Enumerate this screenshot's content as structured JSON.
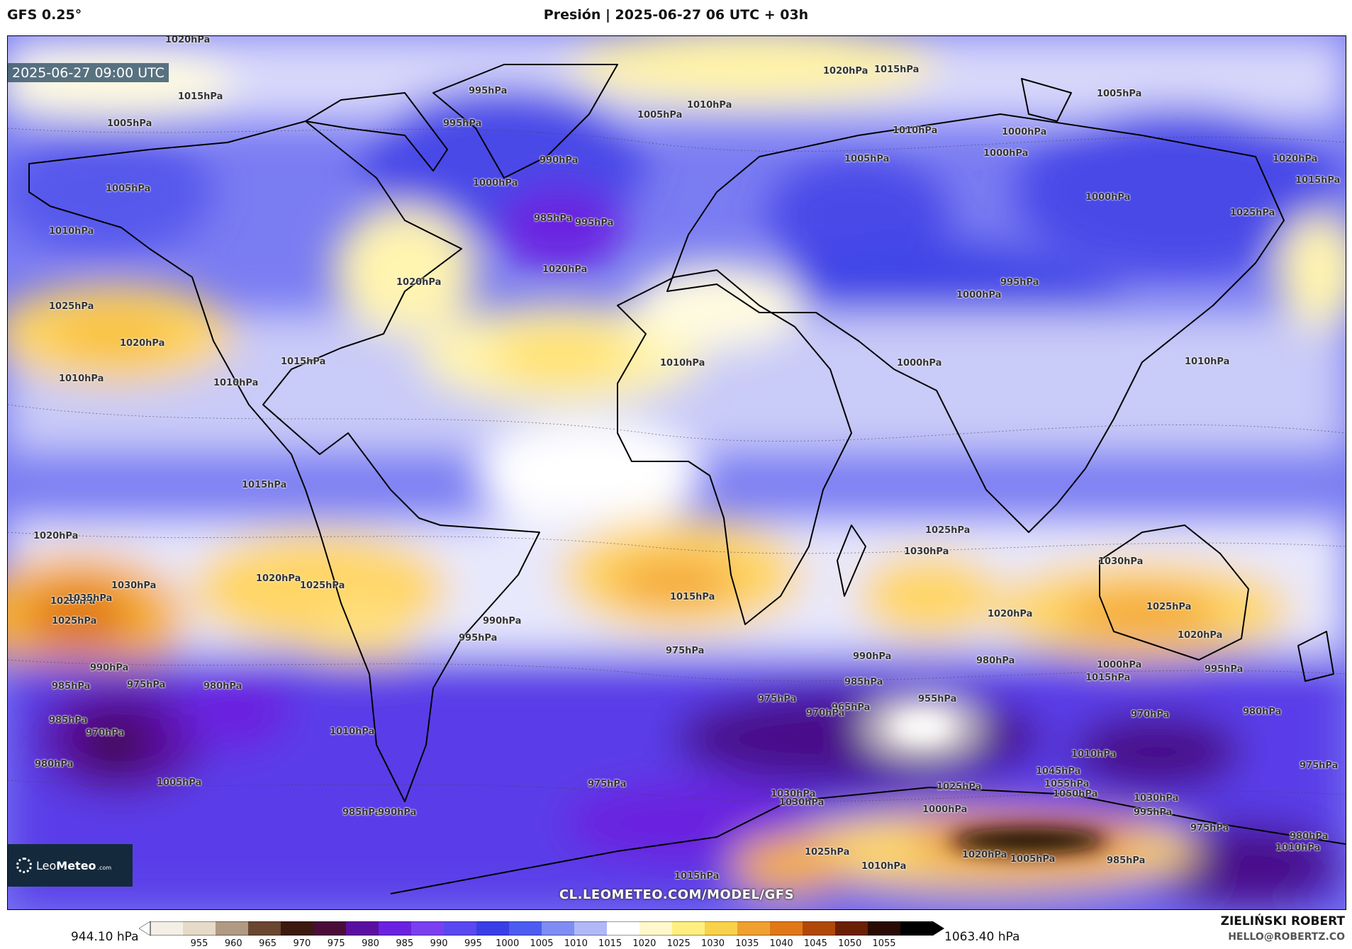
{
  "header": {
    "model": "GFS 0.25°",
    "title": "Presión | 2025-06-27 06 UTC + 03h"
  },
  "map": {
    "valid_time": "2025-06-27 09:00 UTC",
    "watermark": "CL.LEOMETEO.COM/MODEL/GFS",
    "logo": {
      "brand_light": "Leo",
      "brand_bold": "Meteo",
      "suffix": ".com"
    },
    "isobar_labels": [
      "1020hPa",
      "1015hPa",
      "1005hPa",
      "1005hPa",
      "1010hPa",
      "1025hPa",
      "1020hPa",
      "1015hPa",
      "1010hPa",
      "1010hPa",
      "1015hPa",
      "1020hPa",
      "1020hPa",
      "1035hPa",
      "1030hPa",
      "1025hPa",
      "1020hPa",
      "1025hPa",
      "990hPa",
      "985hPa",
      "975hPa",
      "980hPa",
      "985hPa",
      "970hPa",
      "980hPa",
      "1005hPa",
      "1010hPa",
      "985hPa",
      "990hPa",
      "995hPa",
      "995hPa",
      "1000hPa",
      "990hPa",
      "985hPa",
      "995hPa",
      "1005hPa",
      "1010hPa",
      "1020hPa",
      "1015hPa",
      "1005hPa",
      "1010hPa",
      "1000hPa",
      "1005hPa",
      "1000hPa",
      "1015hPa",
      "1020hPa",
      "1025hPa",
      "1020hPa",
      "1020hPa",
      "1010hPa",
      "1000hPa",
      "1000hPa",
      "995hPa",
      "1000hPa",
      "1010hPa",
      "1030hPa",
      "1025hPa",
      "1015hPa",
      "990hPa",
      "995hPa",
      "975hPa",
      "985hPa",
      "990hPa",
      "980hPa",
      "965hPa",
      "955hPa",
      "975hPa",
      "970hPa",
      "975hPa",
      "1025hPa",
      "1030hPa",
      "1030hPa",
      "1020hPa",
      "1025hPa",
      "1020hPa",
      "1015hPa",
      "1010hPa",
      "1000hPa",
      "995hPa",
      "970hPa",
      "980hPa",
      "975hPa",
      "1030hPa",
      "1055hPa",
      "1045hPa",
      "1050hPa",
      "1030hPa",
      "1000hPa",
      "1025hPa",
      "1020hPa",
      "1005hPa",
      "995hPa",
      "975hPa",
      "980hPa",
      "1015hPa",
      "1010hPa",
      "985hPa",
      "1010hPa"
    ],
    "colors": {
      "frame_bg": "#6a6af0",
      "land_outline": "#000000"
    }
  },
  "colorbar": {
    "min_label": "944.10 hPa",
    "max_label": "1063.40 hPa",
    "ticks": [
      "955",
      "960",
      "965",
      "970",
      "975",
      "980",
      "985",
      "990",
      "995",
      "1000",
      "1005",
      "1010",
      "1015",
      "1020",
      "1025",
      "1030",
      "1035",
      "1040",
      "1045",
      "1050",
      "1055"
    ],
    "colors": [
      "#f4efe6",
      "#e6dbc8",
      "#b09a84",
      "#6b4630",
      "#3c1a10",
      "#4a0d3a",
      "#5b0fa0",
      "#6a22e0",
      "#7a40f0",
      "#5a48f0",
      "#3a3ee6",
      "#4d5cf0",
      "#7f8cf4",
      "#b0b8f8",
      "#ffffff",
      "#fff8cc",
      "#ffef80",
      "#f8d24a",
      "#f0a030",
      "#e07818",
      "#b04808",
      "#6a2004",
      "#2a0a02",
      "#000000"
    ]
  },
  "author": {
    "name": "ZIELIŃSKI ROBERT",
    "email": "HELLO@ROBERTZ.CO"
  }
}
